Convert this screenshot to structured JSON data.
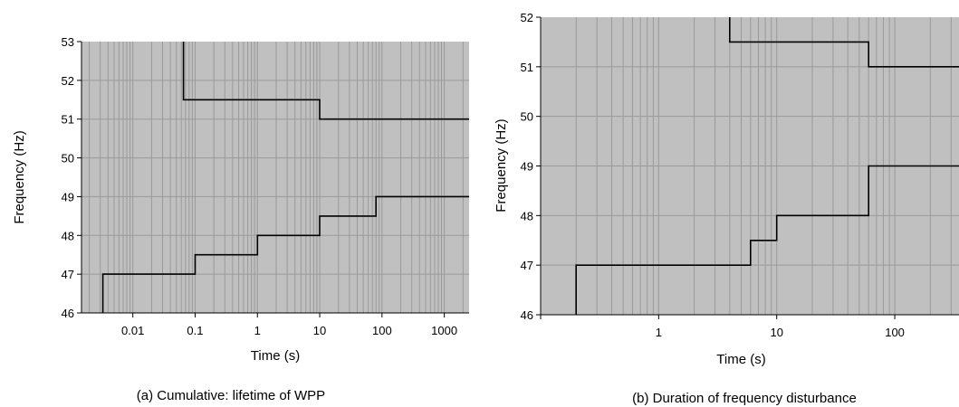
{
  "chart_data": [
    {
      "type": "line",
      "caption": "(a) Cumulative: lifetime of WPP",
      "xlabel": "Time (s)",
      "ylabel": "Frequency (Hz)",
      "x_scale": "log",
      "xlim": [
        0.0015,
        2500
      ],
      "ylim": [
        46,
        53
      ],
      "xticks": [
        0.01,
        0.1,
        1,
        10,
        100,
        1000
      ],
      "xtick_labels": [
        "0.01",
        "0.1",
        "1",
        "10",
        "100",
        "1000"
      ],
      "yticks": [
        46,
        47,
        48,
        49,
        50,
        51,
        52,
        53
      ],
      "ytick_labels": [
        "46",
        "47",
        "48",
        "49",
        "50",
        "51",
        "52",
        "53"
      ],
      "grid": true,
      "plot_background": "#c0c0c0",
      "grid_color": "#9a9a9a",
      "line_color": "#000000",
      "series": [
        {
          "points": [
            [
              0.0033,
              46
            ],
            [
              0.0033,
              47
            ],
            [
              0.1,
              47
            ],
            [
              0.1,
              47.5
            ],
            [
              1,
              47.5
            ],
            [
              1,
              48
            ],
            [
              10,
              48
            ],
            [
              10,
              48.5
            ],
            [
              80,
              48.5
            ],
            [
              80,
              49
            ],
            [
              2500,
              49
            ]
          ]
        },
        {
          "points": [
            [
              0.065,
              53
            ],
            [
              0.065,
              51.5
            ],
            [
              10,
              51.5
            ],
            [
              10,
              51
            ],
            [
              2500,
              51
            ]
          ]
        }
      ]
    },
    {
      "type": "line",
      "caption": "(b) Duration of frequency disturbance",
      "xlabel": "Time (s)",
      "ylabel": "Frequency (Hz)",
      "x_scale": "log",
      "xlim": [
        0.1,
        350
      ],
      "ylim": [
        46,
        52
      ],
      "xticks": [
        1,
        10,
        100
      ],
      "xtick_labels": [
        "1",
        "10",
        "100"
      ],
      "yticks": [
        46,
        47,
        48,
        49,
        50,
        51,
        52
      ],
      "ytick_labels": [
        "46",
        "47",
        "48",
        "49",
        "50",
        "51",
        "52"
      ],
      "grid": true,
      "plot_background": "#c0c0c0",
      "grid_color": "#9a9a9a",
      "line_color": "#000000",
      "series": [
        {
          "points": [
            [
              0.2,
              46
            ],
            [
              0.2,
              47
            ],
            [
              6,
              47
            ],
            [
              6,
              47.5
            ],
            [
              10,
              47.5
            ],
            [
              10,
              48
            ],
            [
              60,
              48
            ],
            [
              60,
              49
            ],
            [
              350,
              49
            ]
          ]
        },
        {
          "points": [
            [
              4,
              52
            ],
            [
              4,
              51.5
            ],
            [
              60,
              51.5
            ],
            [
              60,
              51
            ],
            [
              350,
              51
            ]
          ]
        }
      ]
    }
  ]
}
